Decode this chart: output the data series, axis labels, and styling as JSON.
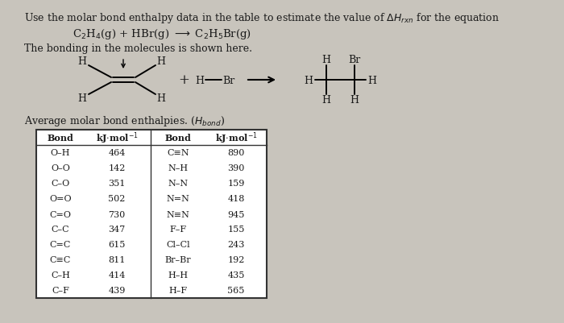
{
  "bg_color": "#c8c4bc",
  "content_bg": "#dedad4",
  "text_color": "#1a1a1a",
  "table_left_data": [
    [
      "O–H",
      "464"
    ],
    [
      "O–O",
      "142"
    ],
    [
      "C–O",
      "351"
    ],
    [
      "O=O",
      "502"
    ],
    [
      "C=O",
      "730"
    ],
    [
      "C–C",
      "347"
    ],
    [
      "C=C",
      "615"
    ],
    [
      "C≡C",
      "811"
    ],
    [
      "C–H",
      "414"
    ],
    [
      "C–F",
      "439"
    ]
  ],
  "table_right_data": [
    [
      "C≡N",
      "890"
    ],
    [
      "N–H",
      "390"
    ],
    [
      "N–N",
      "159"
    ],
    [
      "N=N",
      "418"
    ],
    [
      "N≡N",
      "945"
    ],
    [
      "F–F",
      "155"
    ],
    [
      "Cl–Cl",
      "243"
    ],
    [
      "Br–Br",
      "192"
    ],
    [
      "H–H",
      "435"
    ],
    [
      "H–F",
      "565"
    ]
  ]
}
